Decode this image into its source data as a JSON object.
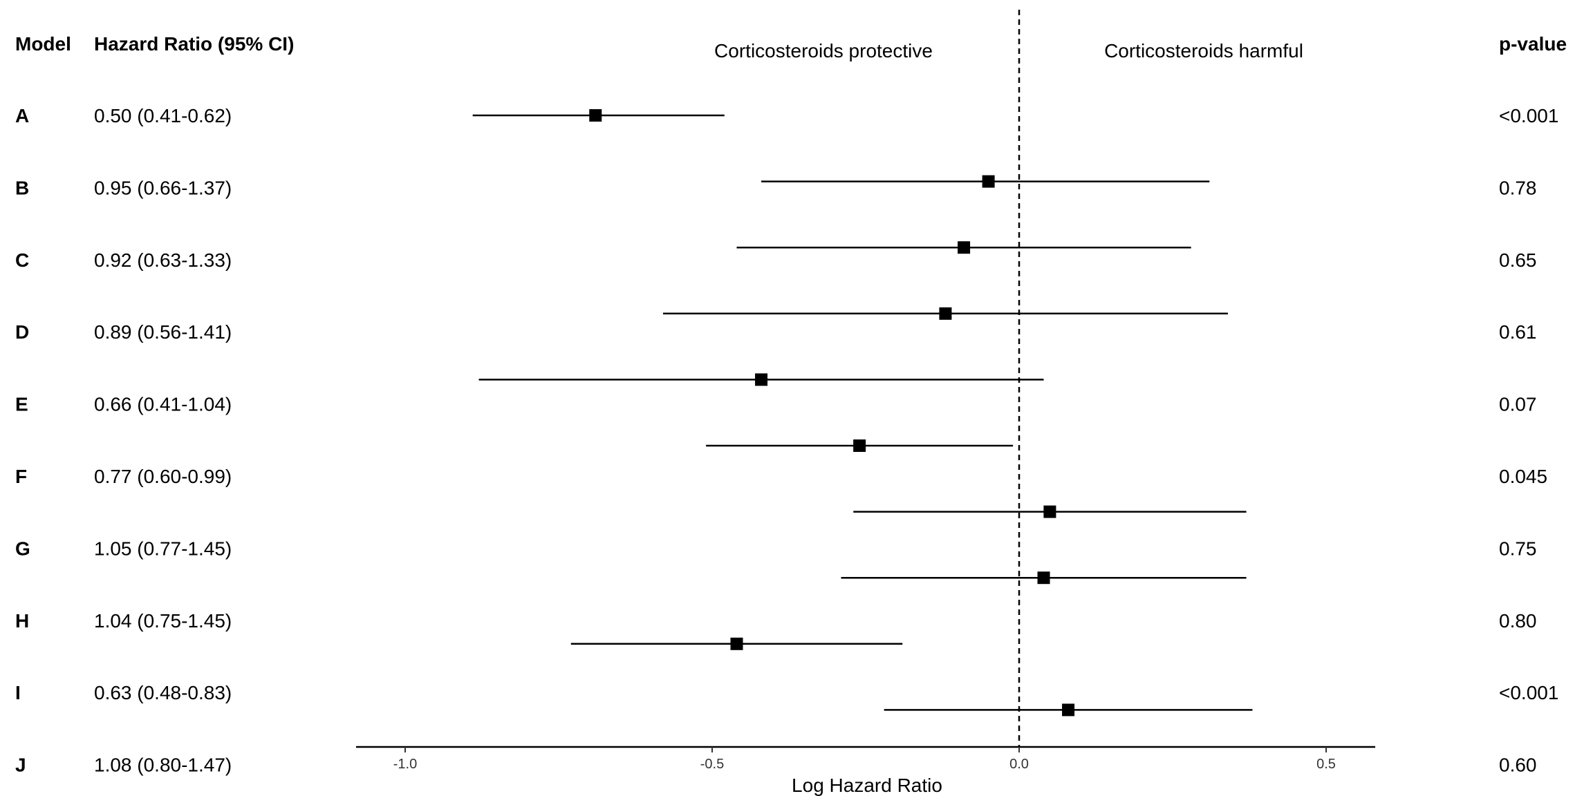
{
  "chart_data": {
    "type": "forest",
    "columns": {
      "model": "Model",
      "hr": "Hazard Ratio (95% CI)",
      "p": "p-value"
    },
    "direction_labels": {
      "left": "Corticosteroids protective",
      "right": "Corticosteroids harmful"
    },
    "xlabel": "Log Hazard Ratio",
    "xlim": [
      -1.08,
      0.58
    ],
    "xticks": [
      -1.0,
      -0.5,
      0.0,
      0.5
    ],
    "xtick_labels": [
      "-1.0",
      "-0.5",
      "0.0",
      "0.5"
    ],
    "reference_line": 0.0,
    "rows": [
      {
        "model": "A",
        "hr_text": "0.50 (0.41-0.62)",
        "p_text": "<0.001"
      },
      {
        "model": "B",
        "hr_text": "0.95 (0.66-1.37)",
        "p_text": "0.78"
      },
      {
        "model": "C",
        "hr_text": "0.92 (0.63-1.33)",
        "p_text": "0.65"
      },
      {
        "model": "D",
        "hr_text": "0.89 (0.56-1.41)",
        "p_text": "0.61"
      },
      {
        "model": "E",
        "hr_text": "0.66 (0.41-1.04)",
        "p_text": "0.07"
      },
      {
        "model": "F",
        "hr_text": "0.77 (0.60-0.99)",
        "p_text": "0.045"
      },
      {
        "model": "G",
        "hr_text": "1.05 (0.77-1.45)",
        "p_text": "0.75"
      },
      {
        "model": "H",
        "hr_text": "1.04 (0.75-1.45)",
        "p_text": "0.80"
      },
      {
        "model": "I",
        "hr_text": "0.63 (0.48-0.83)",
        "p_text": "<0.001"
      },
      {
        "model": "J",
        "hr_text": "1.08 (0.80-1.47)",
        "p_text": "0.60"
      }
    ],
    "points": [
      {
        "estimate": -0.69,
        "lower": -0.89,
        "upper": -0.48
      },
      {
        "estimate": -0.05,
        "lower": -0.42,
        "upper": 0.31
      },
      {
        "estimate": -0.09,
        "lower": -0.46,
        "upper": 0.28
      },
      {
        "estimate": -0.12,
        "lower": -0.58,
        "upper": 0.34
      },
      {
        "estimate": -0.42,
        "lower": -0.88,
        "upper": 0.04
      },
      {
        "estimate": -0.26,
        "lower": -0.51,
        "upper": -0.01
      },
      {
        "estimate": 0.05,
        "lower": -0.27,
        "upper": 0.37
      },
      {
        "estimate": 0.04,
        "lower": -0.29,
        "upper": 0.37
      },
      {
        "estimate": -0.46,
        "lower": -0.73,
        "upper": -0.19
      },
      {
        "estimate": 0.08,
        "lower": -0.22,
        "upper": 0.38
      }
    ]
  }
}
